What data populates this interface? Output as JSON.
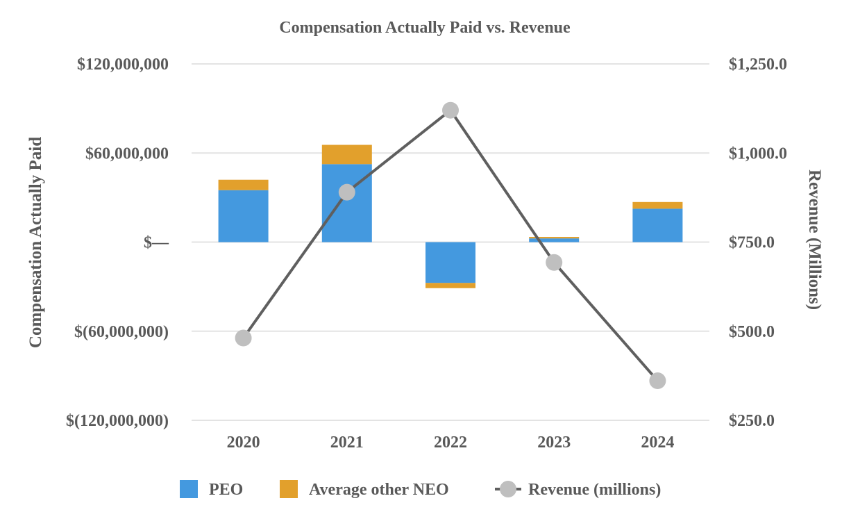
{
  "chart_data": {
    "type": "bar",
    "title": "Compensation Actually Paid vs. Revenue",
    "categories": [
      "2020",
      "2021",
      "2022",
      "2023",
      "2024"
    ],
    "series": [
      {
        "name": "PEO",
        "kind": "stacked-bar",
        "color": "#4499DF",
        "values": [
          35000000,
          52500000,
          -27500000,
          2500000,
          22500000
        ]
      },
      {
        "name": "Average other NEO",
        "kind": "stacked-bar",
        "color": "#E2A02C",
        "values": [
          7000000,
          13000000,
          -3500000,
          1000000,
          4500000
        ]
      },
      {
        "name": "Revenue (millions)",
        "kind": "line",
        "axis": "right",
        "color": "#5F5F5F",
        "marker_color": "#BFBFBF",
        "values": [
          481,
          890,
          1120,
          693,
          361
        ]
      }
    ],
    "ylabel": "Compensation Actually Paid",
    "ylabel_right": "Revenue (Millions)",
    "ylim": [
      -120000000,
      120000000
    ],
    "ylim_right": [
      250,
      1250
    ],
    "yticks": [
      {
        "value": 120000000,
        "label": "$120,000,000"
      },
      {
        "value": 60000000,
        "label": "$60,000,000"
      },
      {
        "value": 0,
        "label": "$—"
      },
      {
        "value": -60000000,
        "label": "$(60,000,000)"
      },
      {
        "value": -120000000,
        "label": "$(120,000,000)"
      }
    ],
    "yticks_right": [
      {
        "value": 1250,
        "label": "$1,250.0"
      },
      {
        "value": 1000,
        "label": "$1,000.0"
      },
      {
        "value": 750,
        "label": "$750.0"
      },
      {
        "value": 500,
        "label": "$500.0"
      },
      {
        "value": 250,
        "label": "$250.0"
      }
    ],
    "grid": true,
    "gridline_color": "#E3E3E3",
    "legend_position": "bottom"
  }
}
